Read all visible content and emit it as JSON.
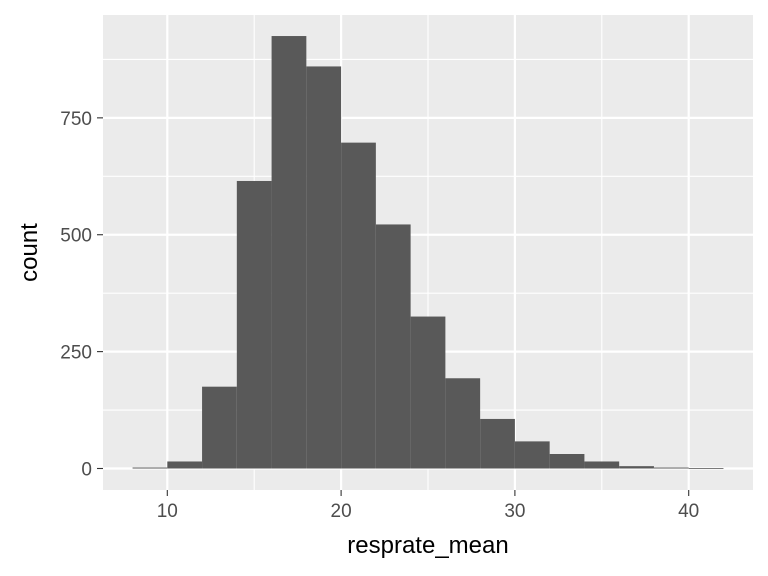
{
  "chart_data": {
    "type": "bar",
    "subtype": "histogram",
    "title": "",
    "xlabel": "resprate_mean",
    "ylabel": "count",
    "bin_width": 2,
    "bins": [
      {
        "x0": 8,
        "x1": 10,
        "count": 2
      },
      {
        "x0": 10,
        "x1": 12,
        "count": 15
      },
      {
        "x0": 12,
        "x1": 14,
        "count": 175
      },
      {
        "x0": 14,
        "x1": 16,
        "count": 615
      },
      {
        "x0": 16,
        "x1": 18,
        "count": 925
      },
      {
        "x0": 18,
        "x1": 20,
        "count": 860
      },
      {
        "x0": 20,
        "x1": 22,
        "count": 697
      },
      {
        "x0": 22,
        "x1": 24,
        "count": 522
      },
      {
        "x0": 24,
        "x1": 26,
        "count": 325
      },
      {
        "x0": 26,
        "x1": 28,
        "count": 193
      },
      {
        "x0": 28,
        "x1": 30,
        "count": 106
      },
      {
        "x0": 30,
        "x1": 32,
        "count": 58
      },
      {
        "x0": 32,
        "x1": 34,
        "count": 31
      },
      {
        "x0": 34,
        "x1": 36,
        "count": 15
      },
      {
        "x0": 36,
        "x1": 38,
        "count": 5
      },
      {
        "x0": 38,
        "x1": 40,
        "count": 2
      },
      {
        "x0": 40,
        "x1": 42,
        "count": 1
      }
    ],
    "xlim": [
      6.3,
      43.7
    ],
    "ylim": [
      -46,
      970
    ],
    "x_ticks": [
      10,
      20,
      30,
      40
    ],
    "y_ticks": [
      0,
      250,
      500,
      750
    ],
    "x_tick_labels": [
      "10",
      "20",
      "30",
      "40"
    ],
    "y_tick_labels": [
      "0",
      "250",
      "500",
      "750"
    ],
    "grid": true,
    "legend": "none",
    "colors": {
      "panel_background": "#EBEBEB",
      "grid_major": "#FFFFFF",
      "bar_fill": "#595959",
      "tick_text": "#4D4D4D",
      "tick_mark": "#333333",
      "axis_title": "#000000"
    }
  }
}
